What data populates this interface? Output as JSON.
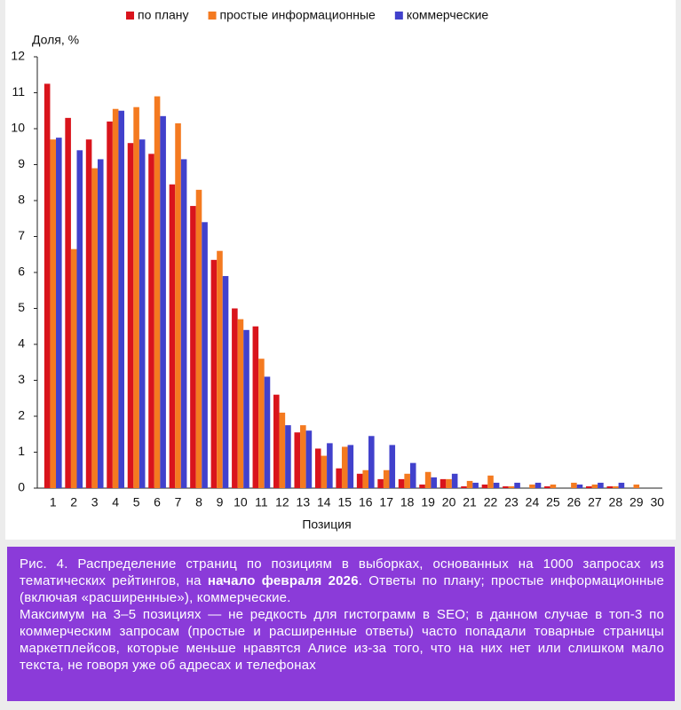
{
  "chart_data": {
    "type": "bar",
    "y_label": "Доля, %",
    "x_label": "Позиция",
    "categories": [
      "1",
      "2",
      "3",
      "4",
      "5",
      "6",
      "7",
      "8",
      "9",
      "10",
      "11",
      "12",
      "13",
      "14",
      "15",
      "16",
      "17",
      "18",
      "19",
      "20",
      "21",
      "22",
      "23",
      "24",
      "25",
      "26",
      "27",
      "28",
      "29",
      "30"
    ],
    "series": [
      {
        "name": "по плану",
        "color": "#d9141c",
        "values": [
          11.25,
          10.3,
          9.7,
          10.2,
          9.6,
          9.3,
          8.45,
          7.85,
          6.35,
          5.0,
          4.5,
          2.6,
          1.55,
          1.1,
          0.55,
          0.4,
          0.25,
          0.25,
          0.1,
          0.25,
          0.05,
          0.1,
          0.05,
          0,
          0.05,
          0,
          0.05,
          0.05,
          0,
          0
        ]
      },
      {
        "name": "простые информационные",
        "color": "#f47a20",
        "values": [
          9.7,
          6.65,
          8.9,
          10.55,
          10.6,
          10.9,
          10.15,
          8.3,
          6.6,
          4.7,
          3.6,
          2.1,
          1.75,
          0.9,
          1.15,
          0.5,
          0.5,
          0.4,
          0.45,
          0.25,
          0.2,
          0.35,
          0.05,
          0.1,
          0.1,
          0.15,
          0.1,
          0.05,
          0.1,
          0
        ]
      },
      {
        "name": "коммерческие",
        "color": "#4141cc",
        "values": [
          9.75,
          9.4,
          9.15,
          10.5,
          9.7,
          10.35,
          9.15,
          7.4,
          5.9,
          4.4,
          3.1,
          1.75,
          1.6,
          1.25,
          1.2,
          1.45,
          1.2,
          0.7,
          0.3,
          0.4,
          0.15,
          0.15,
          0.15,
          0.15,
          0,
          0.1,
          0.15,
          0.15,
          0,
          0
        ]
      }
    ],
    "ylim": [
      0,
      12
    ],
    "yticks": [
      0,
      1,
      2,
      3,
      4,
      5,
      6,
      7,
      8,
      9,
      10,
      11,
      12
    ],
    "legend": "top"
  },
  "caption": {
    "label": "Рис. 4.",
    "text1": "Распределение страниц по позициям в выборках, основанных на 1000 запросах из тематических рейтингов, на",
    "bold": "начало февраля 2026",
    "text2": ". Ответы по плану; простые информационные (включая «расширенные»), коммерческие.",
    "text3": "Максимум на 3–5 позициях — не редкость для гистограмм в SEO; в данном случае в топ-3 по коммерческим запросам (простые и расширенные ответы) часто попадали товарные страницы маркетплейсов, которые меньше нравятся Алисе из-за того, что на них нет или слишком мало текста, не говоря уже об адресах и телефонах"
  }
}
